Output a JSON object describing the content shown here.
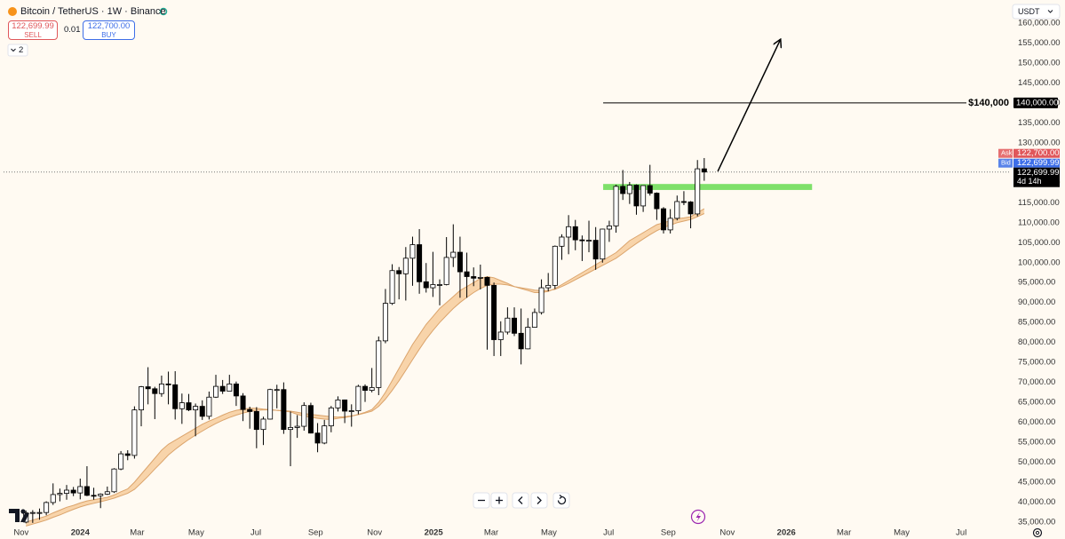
{
  "header": {
    "title": "Bitcoin / TetherUS · 1W · Binance",
    "sell_price": "122,699.99",
    "sell_label": "SELL",
    "spread": "0.01",
    "buy_price": "122,700.00",
    "buy_label": "BUY",
    "indicators_count": "2",
    "currency": "USDT"
  },
  "chart_data": {
    "type": "candlestick",
    "categories": [
      null,
      null,
      null,
      null,
      null,
      null,
      null,
      null,
      null,
      null,
      null,
      null,
      null,
      null,
      null,
      null,
      null,
      null,
      null,
      null,
      null,
      null,
      null,
      null,
      null,
      null,
      null,
      null,
      null,
      null,
      null,
      null,
      null,
      null,
      null,
      null,
      null,
      null,
      null,
      null,
      null,
      null,
      null,
      null,
      null,
      null,
      null,
      null,
      null,
      null,
      null,
      null,
      null,
      null,
      null,
      null,
      null,
      null,
      null,
      null,
      null,
      null,
      null,
      null,
      null,
      null,
      null,
      null,
      null,
      null,
      null,
      null,
      null,
      null,
      null,
      null,
      null,
      null,
      null,
      null,
      null,
      null,
      null,
      null,
      null,
      null,
      null,
      null,
      null,
      null,
      null,
      null,
      null,
      null,
      null,
      null,
      null,
      null,
      null,
      null,
      null
    ],
    "open": [
      35000,
      37300,
      37400,
      37400,
      39900,
      41900,
      42200,
      43000,
      42300,
      43900,
      41700,
      41600,
      42000,
      42600,
      48300,
      52100,
      51700,
      63100,
      68900,
      68400,
      67200,
      69600,
      69400,
      63400,
      64900,
      63100,
      64000,
      61500,
      66300,
      69000,
      67800,
      69600,
      66600,
      63200,
      62700,
      58200,
      60800,
      68200,
      68200,
      58200,
      58700,
      59000,
      64200,
      57300,
      54800,
      59100,
      63600,
      65600,
      62800,
      62900,
      69000,
      68000,
      68700,
      80400,
      89800,
      98000,
      97200,
      101100,
      104500,
      95200,
      93700,
      94500,
      94500,
      101300,
      102600,
      97700,
      96500,
      96100,
      96300,
      94300,
      80700,
      82600,
      86100,
      82300,
      78400,
      83800,
      87500,
      93700,
      94300,
      104100,
      106400,
      109000,
      105700,
      105600,
      105600,
      100900,
      108400,
      109200,
      119100,
      117300,
      119400,
      114200,
      119300,
      117400,
      113500,
      108200,
      111100,
      115300,
      115200,
      112200,
      123500
    ],
    "high": [
      37900,
      38000,
      38400,
      40200,
      44700,
      43400,
      44300,
      43800,
      45900,
      49000,
      43600,
      42200,
      43900,
      48500,
      52800,
      53000,
      64000,
      69100,
      73800,
      68900,
      71700,
      72700,
      72800,
      67200,
      67100,
      64700,
      65500,
      67700,
      71900,
      70600,
      71900,
      70200,
      67300,
      63900,
      63800,
      61400,
      68400,
      69400,
      70000,
      62700,
      61800,
      65000,
      64900,
      59800,
      60600,
      64100,
      66500,
      65700,
      64500,
      69400,
      69500,
      73600,
      81500,
      93400,
      99600,
      98900,
      103900,
      106500,
      108400,
      99900,
      102700,
      95800,
      106400,
      109600,
      106500,
      102500,
      98800,
      99500,
      96500,
      95000,
      85300,
      88800,
      88800,
      88500,
      86100,
      88500,
      95800,
      97400,
      104300,
      107100,
      111900,
      110700,
      106800,
      110500,
      108900,
      108500,
      110500,
      119500,
      123200,
      120200,
      119600,
      119300,
      124500,
      117600,
      113900,
      113400,
      116800,
      117900,
      115400,
      125700,
      126200
    ],
    "low": [
      34700,
      34800,
      35600,
      36700,
      39300,
      40200,
      40600,
      41500,
      40700,
      41500,
      40600,
      38500,
      41800,
      42300,
      48000,
      50500,
      50900,
      59000,
      64500,
      60800,
      66400,
      64500,
      60700,
      59600,
      62800,
      56500,
      60600,
      60700,
      66100,
      67100,
      67800,
      64100,
      60300,
      58400,
      53500,
      54300,
      60700,
      63500,
      57100,
      49000,
      56100,
      57900,
      57200,
      52500,
      54500,
      57500,
      62700,
      59800,
      58900,
      62000,
      65100,
      67500,
      66800,
      79800,
      89400,
      90800,
      90500,
      94200,
      92200,
      92500,
      91400,
      89300,
      94300,
      98900,
      91200,
      91200,
      94100,
      93300,
      78200,
      76600,
      76600,
      82000,
      81600,
      74500,
      78300,
      83700,
      87000,
      92800,
      93400,
      100700,
      102100,
      103100,
      100400,
      102600,
      98200,
      100000,
      105200,
      107500,
      115700,
      114700,
      112000,
      112700,
      116800,
      110700,
      107300,
      107300,
      110600,
      114400,
      108600,
      111600,
      120500
    ],
    "close": [
      37300,
      37400,
      37400,
      39900,
      41900,
      42200,
      43000,
      42300,
      43900,
      41700,
      41600,
      42000,
      42600,
      48300,
      52100,
      51700,
      63100,
      68900,
      68400,
      67200,
      69600,
      69400,
      63400,
      64900,
      63100,
      64000,
      61500,
      66300,
      69000,
      67800,
      69600,
      66600,
      63200,
      62700,
      58200,
      60800,
      68200,
      68200,
      58200,
      58700,
      59000,
      64200,
      57300,
      54800,
      59100,
      63600,
      65600,
      62800,
      62900,
      69000,
      68000,
      68700,
      80400,
      89800,
      98000,
      97200,
      101100,
      104500,
      95200,
      93700,
      94500,
      94500,
      101300,
      102600,
      97700,
      96500,
      96100,
      96300,
      94300,
      80700,
      82600,
      86100,
      82300,
      78400,
      83800,
      87500,
      93700,
      94300,
      104100,
      106400,
      109000,
      105700,
      105600,
      105600,
      100900,
      108400,
      109200,
      119100,
      117300,
      119400,
      114200,
      119300,
      117400,
      113500,
      108200,
      111100,
      115300,
      115200,
      112200,
      123500,
      122700
    ],
    "up_color": "#ffffff",
    "down_color": "#000000",
    "ribbon": {
      "color": "#f6c792",
      "line_color": "#dba46c",
      "fast": [
        35000,
        35500,
        36000,
        36500,
        37300,
        38000,
        38700,
        39200,
        39800,
        40300,
        40600,
        40900,
        41200,
        41800,
        42600,
        43300,
        45000,
        47000,
        49000,
        51000,
        53000,
        54500,
        55500,
        56500,
        57500,
        58500,
        59500,
        60300,
        61000,
        61800,
        62500,
        63000,
        63300,
        63500,
        63500,
        63300,
        63200,
        63000,
        62800,
        62600,
        62000,
        61500,
        61300,
        61000,
        60800,
        60700,
        61000,
        61200,
        61500,
        62000,
        62500,
        63200,
        65000,
        67500,
        70500,
        73500,
        76500,
        79500,
        82000,
        84500,
        86500,
        88500,
        90000,
        91500,
        93000,
        94000,
        95000,
        96000,
        96500,
        96200,
        95500,
        94800,
        94000,
        93500,
        93000,
        92500,
        92500,
        92800,
        93500,
        94500,
        95500,
        96500,
        97500,
        98500,
        99500,
        100500,
        101500,
        102500,
        104000,
        105500,
        106500,
        107500,
        108500,
        109500,
        110000,
        110500,
        111000,
        111200,
        111500,
        112500,
        113500
      ],
      "slow": [
        34000,
        34500,
        35000,
        35500,
        36200,
        36800,
        37500,
        38200,
        38800,
        39300,
        39700,
        40100,
        40500,
        41000,
        41600,
        42200,
        43200,
        44800,
        46500,
        48300,
        50000,
        51800,
        53200,
        54500,
        55700,
        56800,
        57800,
        58800,
        59700,
        60500,
        61200,
        61800,
        62300,
        62700,
        63000,
        63100,
        63100,
        63000,
        62900,
        62800,
        62500,
        62200,
        62000,
        61800,
        61600,
        61400,
        61300,
        61400,
        61600,
        61900,
        62300,
        62800,
        64000,
        65800,
        68000,
        70400,
        73000,
        75700,
        78300,
        80800,
        83000,
        85000,
        86800,
        88500,
        90000,
        91300,
        92500,
        93500,
        94300,
        94600,
        94600,
        94400,
        94000,
        93700,
        93400,
        93100,
        93000,
        93000,
        93300,
        94000,
        94800,
        95700,
        96600,
        97500,
        98400,
        99300,
        100200,
        101100,
        102300,
        103600,
        104800,
        105900,
        107000,
        108000,
        108800,
        109400,
        110000,
        110400,
        110800,
        111500,
        112300
      ]
    },
    "xlim": [
      -3.3,
      145.2
    ],
    "xticks": [
      {
        "value": -0.7,
        "label": "Nov"
      },
      {
        "value": 8,
        "label": "2024"
      },
      {
        "value": 16.4,
        "label": "Mar"
      },
      {
        "value": 25.1,
        "label": "May"
      },
      {
        "value": 33.9,
        "label": "Jul"
      },
      {
        "value": 42.7,
        "label": "Sep"
      },
      {
        "value": 51.4,
        "label": "Nov"
      },
      {
        "value": 60.1,
        "label": "2025"
      },
      {
        "value": 68.6,
        "label": "Mar"
      },
      {
        "value": 77.1,
        "label": "May"
      },
      {
        "value": 85.9,
        "label": "Jul"
      },
      {
        "value": 94.7,
        "label": "Sep"
      },
      {
        "value": 103.4,
        "label": "Nov"
      },
      {
        "value": 112.1,
        "label": "2026"
      },
      {
        "value": 120.6,
        "label": "Mar"
      },
      {
        "value": 129.1,
        "label": "May"
      },
      {
        "value": 137.9,
        "label": "Jul"
      }
    ],
    "ylim": [
      34100,
      164900
    ],
    "yticks": [
      {
        "value": 35000,
        "label": "35,000.00"
      },
      {
        "value": 40000,
        "label": "40,000.00"
      },
      {
        "value": 45000,
        "label": "45,000.00"
      },
      {
        "value": 50000,
        "label": "50,000.00"
      },
      {
        "value": 55000,
        "label": "55,000.00"
      },
      {
        "value": 60000,
        "label": "60,000.00"
      },
      {
        "value": 65000,
        "label": "65,000.00"
      },
      {
        "value": 70000,
        "label": "70,000.00"
      },
      {
        "value": 75000,
        "label": "75,000.00"
      },
      {
        "value": 80000,
        "label": "80,000.00"
      },
      {
        "value": 85000,
        "label": "85,000.00"
      },
      {
        "value": 90000,
        "label": "90,000.00"
      },
      {
        "value": 95000,
        "label": "95,000.00"
      },
      {
        "value": 100000,
        "label": "100,000.00"
      },
      {
        "value": 105000,
        "label": "105,000.00"
      },
      {
        "value": 110000,
        "label": "110,000.00"
      },
      {
        "value": 115000,
        "label": "115,000.00"
      },
      {
        "value": 120000,
        "label": "120,000.00"
      },
      {
        "value": 125000,
        "label": "125,000.00"
      },
      {
        "value": 130000,
        "label": "130,000.00"
      },
      {
        "value": 135000,
        "label": "135,000.00"
      },
      {
        "value": 140000,
        "label": "140,000.00"
      },
      {
        "value": 145000,
        "label": "145,000.00"
      },
      {
        "value": 150000,
        "label": "150,000.00"
      },
      {
        "value": 155000,
        "label": "155,000.00"
      },
      {
        "value": 160000,
        "label": "160,000.00"
      }
    ],
    "price_line": {
      "value": 122699.99,
      "label": "122,699.99",
      "countdown": "4d 14h"
    },
    "ask": {
      "name": "Ask",
      "value": 122700,
      "label": "122,700.00",
      "color": "#e0575b"
    },
    "bid": {
      "name": "Bid",
      "value": 122699.99,
      "label": "122,699.99",
      "color": "#3d6ee8"
    },
    "annotations": {
      "level": {
        "value": 140000,
        "label": "$140,000",
        "axis_label": "140,000.00",
        "x_start": 85.1
      },
      "zone": {
        "y": [
          118200,
          119700
        ],
        "x": [
          85.1,
          115.9
        ],
        "color": "#7ee06a"
      },
      "arrow": {
        "x": [
          102,
          111.2
        ],
        "y": [
          122860,
          155770
        ]
      }
    }
  }
}
